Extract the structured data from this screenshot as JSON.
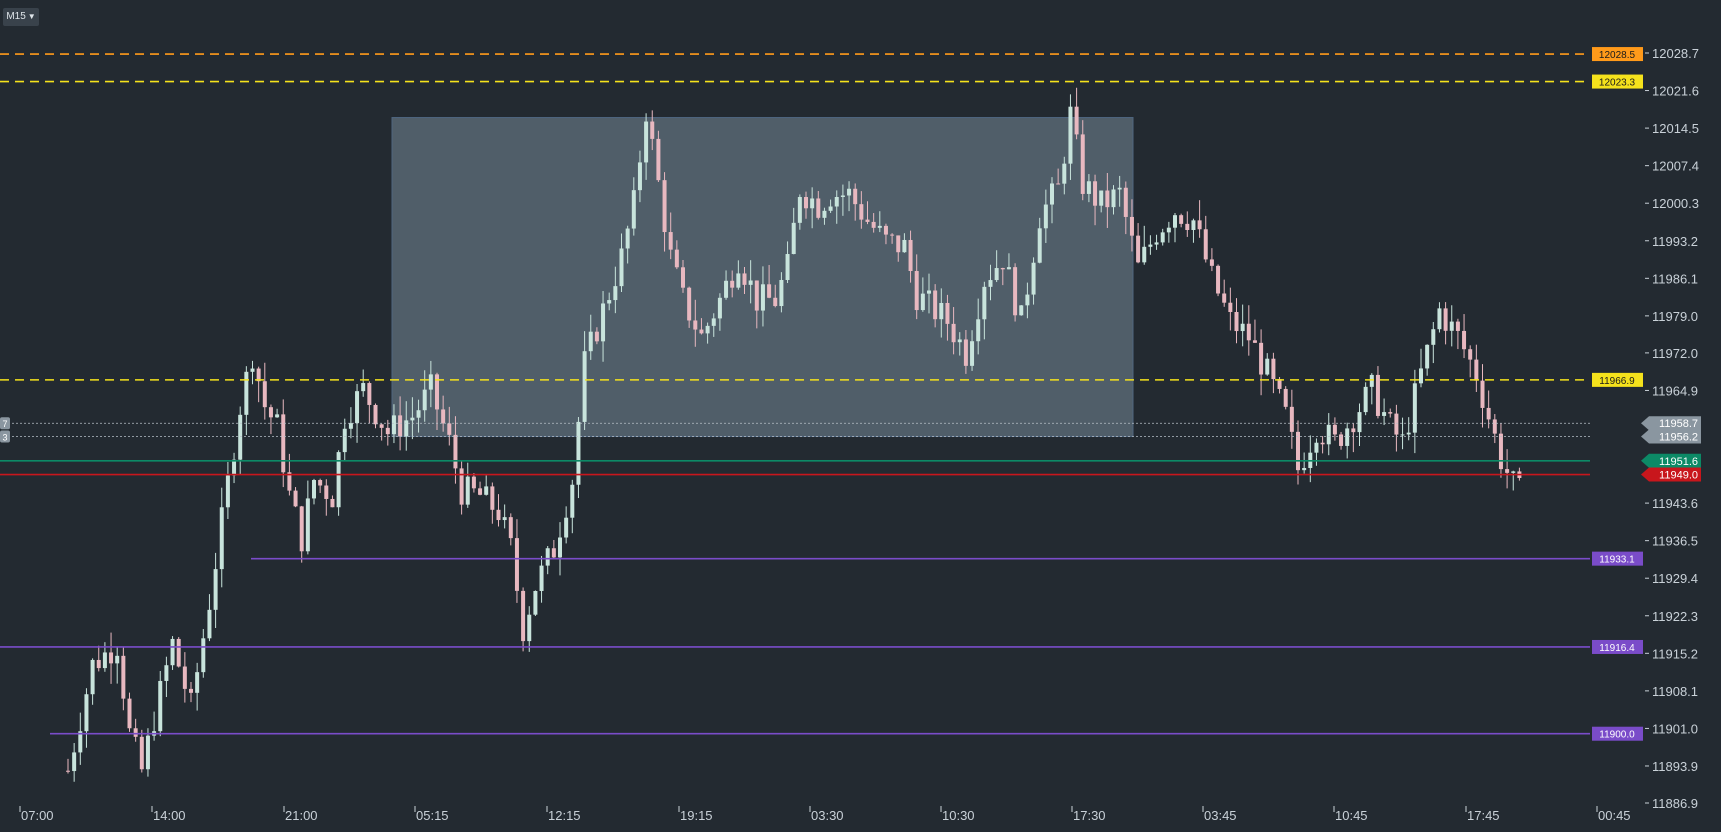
{
  "toolbar": {
    "timeframe": "M15",
    "dropdown_icon": "caret-down-icon"
  },
  "colors": {
    "background": "#232a31",
    "bull": "#c8e4dc",
    "bear": "#e8b8c0",
    "orange": "#ff9a1a",
    "yellow": "#f5e21c",
    "purple": "#7a4cc9",
    "green": "#0c8a66",
    "red": "#c8161c",
    "box": "#8fa7b7",
    "axis_text": "#c9d1d8"
  },
  "chart_data": {
    "type": "candlestick",
    "symbol_timeframe": "M15",
    "y_axis": {
      "range": [
        11886.9,
        12028.7
      ],
      "ticks": [
        "12028.7",
        "12021.6",
        "12014.5",
        "12007.4",
        "12000.3",
        "11993.2",
        "11986.1",
        "11979.0",
        "11972.0",
        "11964.9",
        "11943.6",
        "11936.5",
        "11929.4",
        "11922.3",
        "11915.2",
        "11908.1",
        "11901.0",
        "11893.9",
        "11886.9"
      ]
    },
    "x_axis": {
      "ticks": [
        "07:00",
        "14:00",
        "21:00",
        "05:15",
        "12:15",
        "19:15",
        "03:30",
        "10:30",
        "17:30",
        "03:45",
        "10:45",
        "17:45",
        "00:45"
      ]
    },
    "price_path": [
      [
        0,
        11893
      ],
      [
        4,
        11913
      ],
      [
        8,
        11917
      ],
      [
        10,
        11900
      ],
      [
        12,
        11893
      ],
      [
        14,
        11903
      ],
      [
        17,
        11917
      ],
      [
        20,
        11905
      ],
      [
        23,
        11925
      ],
      [
        25,
        11940
      ],
      [
        28,
        11962
      ],
      [
        30,
        11972
      ],
      [
        32,
        11962
      ],
      [
        34,
        11958
      ],
      [
        36,
        11945
      ],
      [
        38,
        11937
      ],
      [
        40,
        11948
      ],
      [
        43,
        11945
      ],
      [
        45,
        11960
      ],
      [
        48,
        11965
      ],
      [
        52,
        11957
      ],
      [
        56,
        11960
      ],
      [
        59,
        11965
      ],
      [
        62,
        11955
      ],
      [
        64,
        11946
      ],
      [
        67,
        11945
      ],
      [
        70,
        11942
      ],
      [
        72,
        11935
      ],
      [
        74,
        11920
      ],
      [
        76,
        11928
      ],
      [
        79,
        11935
      ],
      [
        82,
        11948
      ],
      [
        84,
        11970
      ],
      [
        87,
        11980
      ],
      [
        90,
        11990
      ],
      [
        92,
        12000
      ],
      [
        94,
        12018
      ],
      [
        96,
        12004
      ],
      [
        98,
        11990
      ],
      [
        100,
        11982
      ],
      [
        103,
        11975
      ],
      [
        106,
        11982
      ],
      [
        109,
        11990
      ],
      [
        112,
        11982
      ],
      [
        115,
        11982
      ],
      [
        117,
        11988
      ],
      [
        119,
        12003
      ],
      [
        122,
        12000
      ],
      [
        124,
        12002
      ],
      [
        127,
        12002
      ],
      [
        130,
        11997
      ],
      [
        133,
        11993
      ],
      [
        136,
        11992
      ],
      [
        138,
        11983
      ],
      [
        141,
        11980
      ],
      [
        143,
        11978
      ],
      [
        146,
        11972
      ],
      [
        149,
        11986
      ],
      [
        152,
        11990
      ],
      [
        155,
        11978
      ],
      [
        158,
        11998
      ],
      [
        161,
        12003
      ],
      [
        163,
        12017
      ],
      [
        165,
        12004
      ],
      [
        168,
        12000
      ],
      [
        171,
        12002
      ],
      [
        174,
        11988
      ],
      [
        177,
        11995
      ],
      [
        180,
        11999
      ],
      [
        183,
        11997
      ],
      [
        186,
        11986
      ],
      [
        189,
        11978
      ],
      [
        192,
        11975
      ],
      [
        195,
        11968
      ],
      [
        198,
        11960
      ],
      [
        200,
        11950
      ],
      [
        203,
        11958
      ],
      [
        206,
        11955
      ],
      [
        209,
        11960
      ],
      [
        212,
        11965
      ],
      [
        215,
        11958
      ],
      [
        217,
        11955
      ],
      [
        220,
        11968
      ],
      [
        223,
        11980
      ],
      [
        226,
        11975
      ],
      [
        229,
        11968
      ],
      [
        231,
        11960
      ],
      [
        233,
        11952
      ],
      [
        235,
        11947
      ],
      [
        237,
        11944
      ]
    ],
    "horizontal_levels": [
      {
        "label": "12028.5",
        "value": 12028.5,
        "color": "orange",
        "style": "dashed"
      },
      {
        "label": "12023.3",
        "value": 12023.3,
        "color": "yellow",
        "style": "dashed"
      },
      {
        "label": "11966.9",
        "value": 11966.9,
        "color": "yellow",
        "style": "dashed"
      },
      {
        "label": "11958.7",
        "value": 11958.7,
        "color": "gray",
        "style": "dotted"
      },
      {
        "label": "11956.2",
        "value": 11956.2,
        "color": "gray",
        "style": "dotted"
      },
      {
        "label": "11951.6",
        "value": 11951.6,
        "color": "green",
        "style": "solid"
      },
      {
        "label": "11949.0",
        "value": 11949.0,
        "color": "red",
        "style": "solid"
      },
      {
        "label": "11933.1",
        "value": 11933.1,
        "color": "purple",
        "style": "solid"
      },
      {
        "label": "11916.4",
        "value": 11916.4,
        "color": "purple",
        "style": "solid"
      },
      {
        "label": "11900.0",
        "value": 11900.0,
        "color": "purple",
        "style": "solid"
      }
    ],
    "left_edge_labels": [
      "7",
      "3"
    ],
    "range_box": {
      "top": 12016.5,
      "bottom": 11956.2
    }
  }
}
